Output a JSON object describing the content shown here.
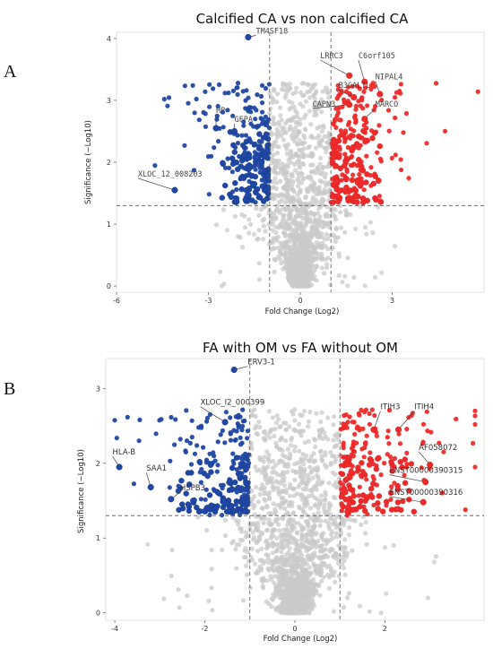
{
  "colors": {
    "down": "#1f47a3",
    "up": "#ef2a2a",
    "ns": "#c9c9c9",
    "ns_edge": "#b8b8b8"
  },
  "chart_data": [
    {
      "type": "scatter",
      "panel_letter": "A",
      "title": "Calcified CA vs non calcified CA",
      "xlabel": "Fold Change (Log2)",
      "ylabel": "Significance (−Log10)",
      "xlim": [
        -6,
        6
      ],
      "ylim": [
        -0.1,
        4.1
      ],
      "xticks": [
        -6,
        -3,
        0,
        3
      ],
      "yticks": [
        0,
        1,
        2,
        3,
        4
      ],
      "fc_threshold": 1,
      "p_threshold": 1.3,
      "label_font": "mono",
      "labeled_points": [
        {
          "label": "TM4SF18",
          "x": -1.7,
          "y": 4.02,
          "class": "down",
          "lx": -1.45,
          "ly": 4.08
        },
        {
          "label": "LRRC3",
          "x": 1.6,
          "y": 3.4,
          "class": "up",
          "lx": 0.65,
          "ly": 3.68
        },
        {
          "label": "C6orf105",
          "x": 2.1,
          "y": 3.3,
          "class": "up",
          "lx": 1.9,
          "ly": 3.68
        },
        {
          "label": "NIPAL4",
          "x": 2.6,
          "y": 3.1,
          "class": "up",
          "lx": 2.45,
          "ly": 3.34
        },
        {
          "label": "B3GALTL",
          "x": 1.75,
          "y": 3.05,
          "class": "up",
          "lx": 1.25,
          "ly": 3.2
        },
        {
          "label": "CAPN3",
          "x": 1.6,
          "y": 2.93,
          "class": "up",
          "lx": 0.4,
          "ly": 2.9
        },
        {
          "label": "MARCO",
          "x": 2.1,
          "y": 2.7,
          "class": "up",
          "lx": 2.45,
          "ly": 2.9
        },
        {
          "label": "HP",
          "x": -2.75,
          "y": 2.55,
          "class": "down",
          "lx": -2.75,
          "ly": 2.8
        },
        {
          "label": "GFPA",
          "x": -2.15,
          "y": 2.5,
          "class": "down",
          "lx": -2.15,
          "ly": 2.65
        },
        {
          "label": "XLOC_12_008203",
          "x": -4.1,
          "y": 1.55,
          "class": "down",
          "lx": -5.3,
          "ly": 1.77
        }
      ]
    },
    {
      "type": "scatter",
      "panel_letter": "B",
      "title": "FA with OM vs FA without OM",
      "xlabel": "Fold Change (Log2)",
      "ylabel": "Significance (−Log10)",
      "xlim": [
        -4.2,
        4.2
      ],
      "ylim": [
        -0.1,
        3.4
      ],
      "xticks": [
        -4,
        -2,
        0,
        2
      ],
      "yticks": [
        0,
        1,
        2,
        3
      ],
      "fc_threshold": 1,
      "p_threshold": 1.3,
      "label_font": "sans",
      "labeled_points": [
        {
          "label": "ERV3-1",
          "x": -1.35,
          "y": 3.25,
          "class": "down",
          "lx": -1.05,
          "ly": 3.32
        },
        {
          "label": "XLOC_I2_000399",
          "x": -1.55,
          "y": 2.55,
          "class": "down",
          "lx": -2.1,
          "ly": 2.78
        },
        {
          "label": "ITIH3",
          "x": 1.75,
          "y": 2.45,
          "class": "up",
          "lx": 1.9,
          "ly": 2.72
        },
        {
          "label": "ITIH4",
          "x": 2.3,
          "y": 2.45,
          "class": "up",
          "lx": 2.65,
          "ly": 2.72
        },
        {
          "label": "AF058072",
          "x": 3.0,
          "y": 1.98,
          "class": "up",
          "lx": 2.75,
          "ly": 2.18
        },
        {
          "label": "ENST00000390315",
          "x": 2.9,
          "y": 1.75,
          "class": "up",
          "lx": 2.1,
          "ly": 1.87
        },
        {
          "label": "ENST00000390316",
          "x": 2.85,
          "y": 1.48,
          "class": "up",
          "lx": 2.1,
          "ly": 1.58
        },
        {
          "label": "HLA-B",
          "x": -3.9,
          "y": 1.95,
          "class": "down",
          "lx": -4.05,
          "ly": 2.12
        },
        {
          "label": "SAA1",
          "x": -3.2,
          "y": 1.68,
          "class": "down",
          "lx": -3.3,
          "ly": 1.9
        },
        {
          "label": "HSPB3",
          "x": -2.75,
          "y": 1.52,
          "class": "down",
          "lx": -2.55,
          "ly": 1.64
        }
      ]
    }
  ]
}
